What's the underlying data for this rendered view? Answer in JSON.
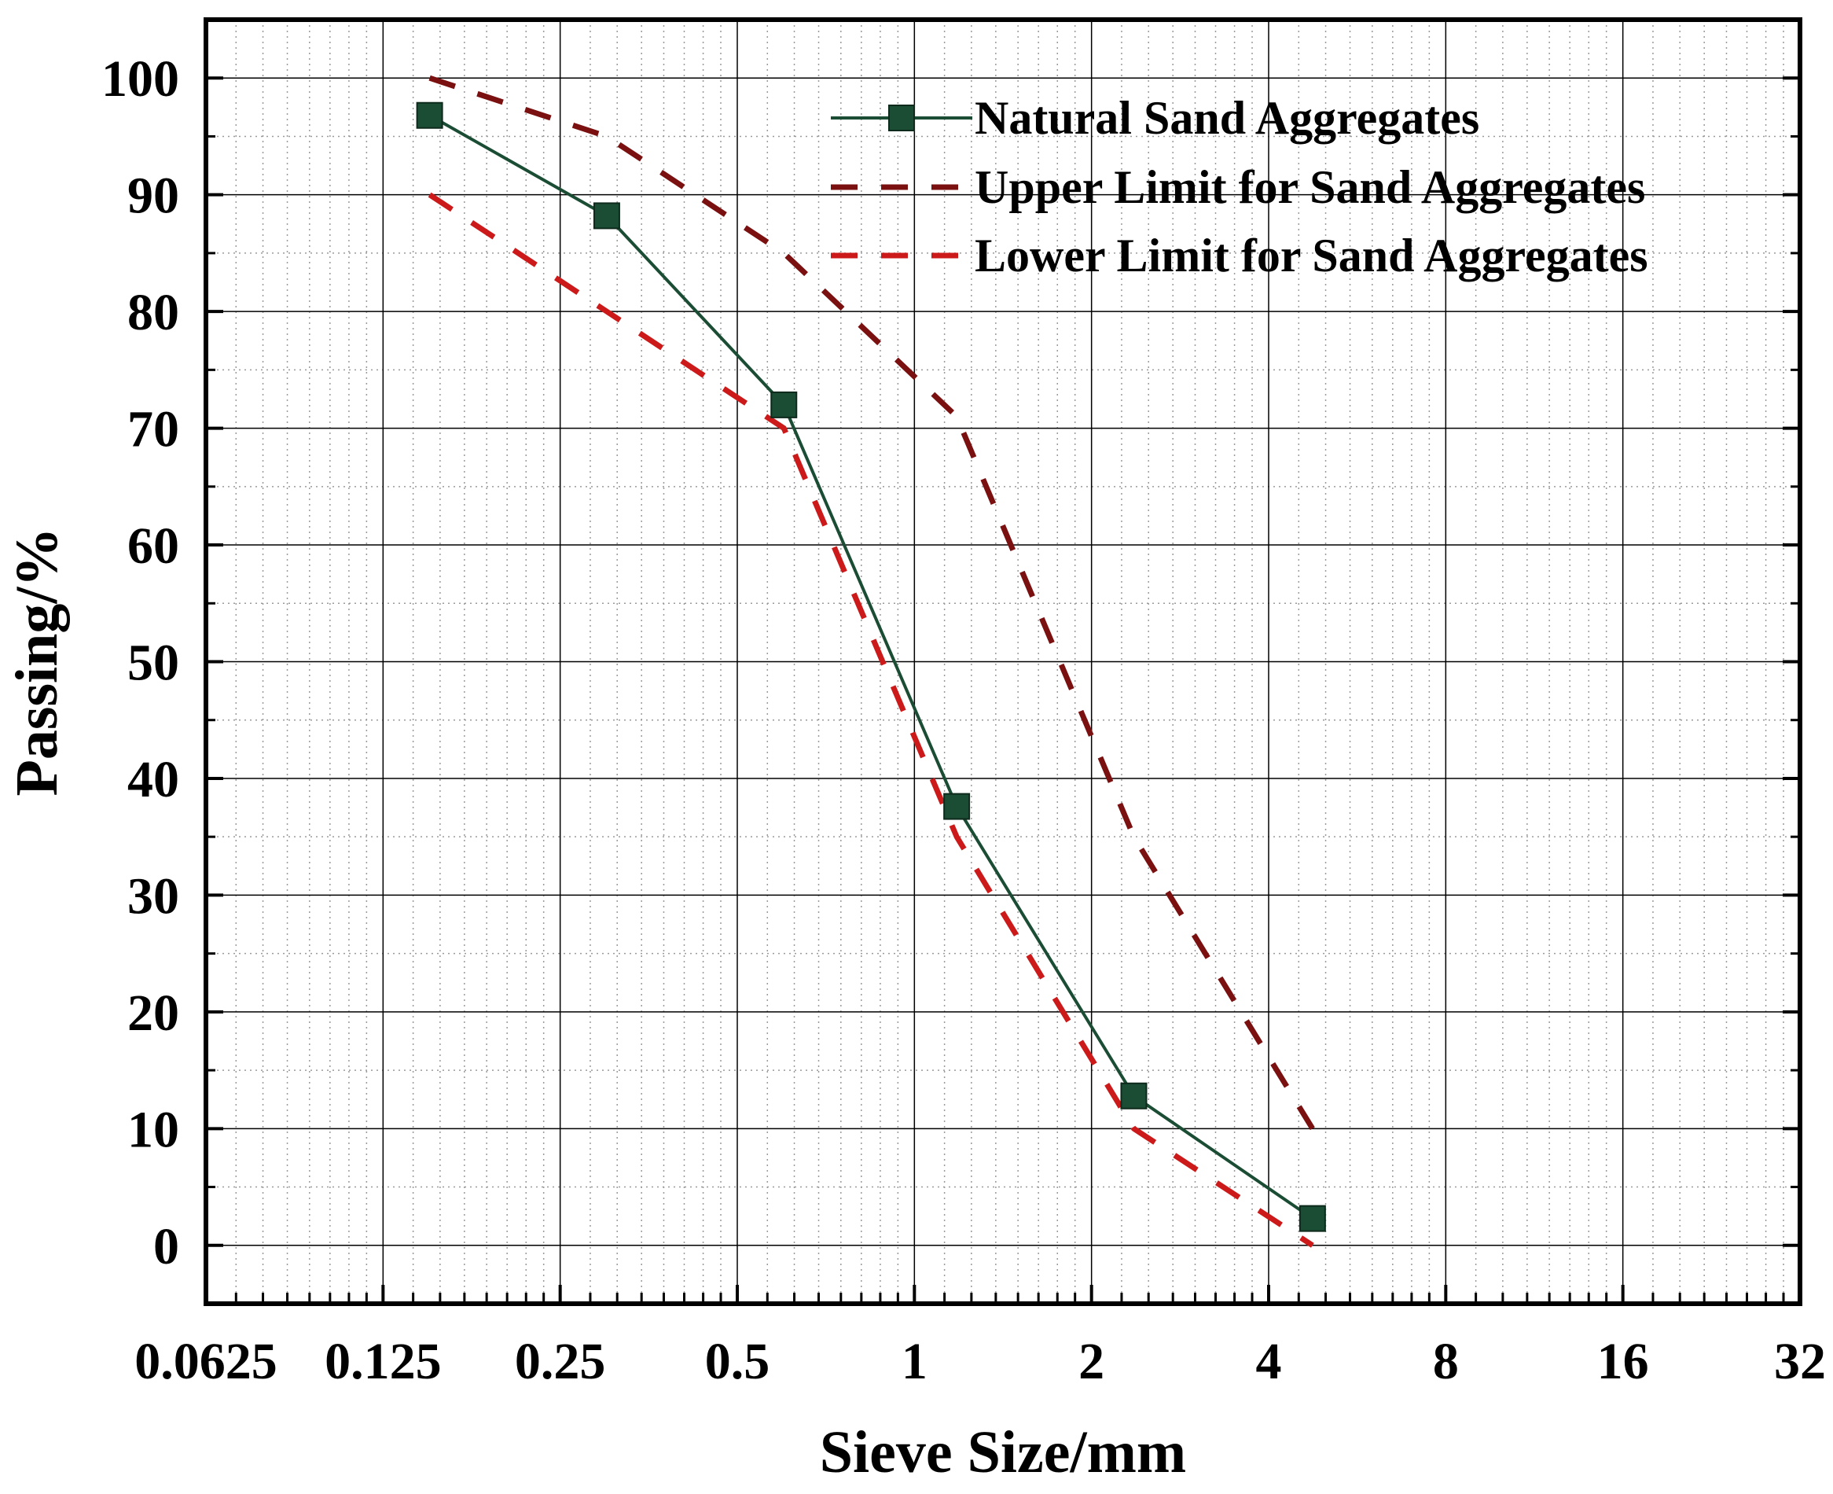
{
  "chart_data": {
    "type": "line",
    "xscale": "log2",
    "xlabel": "Sieve Size/mm",
    "ylabel": "Passing/%",
    "xlim": [
      0.0625,
      32
    ],
    "ylim": [
      -5,
      105
    ],
    "x_ticks": [
      0.0625,
      0.125,
      0.25,
      0.5,
      1,
      2,
      4,
      8,
      16,
      32
    ],
    "x_tick_labels": [
      "0.0625",
      "0.125",
      "0.25",
      "0.5",
      "1",
      "2",
      "4",
      "8",
      "16",
      "32"
    ],
    "y_ticks": [
      0,
      10,
      20,
      30,
      40,
      50,
      60,
      70,
      80,
      90,
      100
    ],
    "y_tick_labels": [
      "0",
      "10",
      "20",
      "30",
      "40",
      "50",
      "60",
      "70",
      "80",
      "90",
      "100"
    ],
    "grid": true,
    "legend_position": "top-right",
    "series": [
      {
        "name": "Natural Sand Aggregates",
        "style": "solid-square-markers",
        "color": "#1b4d34",
        "x": [
          0.15,
          0.3,
          0.6,
          1.18,
          2.36,
          4.75
        ],
        "y": [
          96.8,
          88.2,
          72.0,
          37.6,
          12.8,
          2.3
        ]
      },
      {
        "name": "Upper Limit for Sand Aggregates",
        "style": "dashed",
        "color": "#7a1010",
        "x": [
          0.15,
          0.3,
          0.6,
          1.18,
          2.36,
          4.75
        ],
        "y": [
          100,
          95,
          85,
          71,
          35,
          10
        ]
      },
      {
        "name": "Lower Limit for Sand Aggregates",
        "style": "dashed",
        "color": "#cc1a1a",
        "x": [
          0.15,
          0.3,
          0.6,
          1.18,
          2.36,
          4.75
        ],
        "y": [
          90,
          80,
          70,
          35,
          10,
          0
        ]
      }
    ]
  }
}
